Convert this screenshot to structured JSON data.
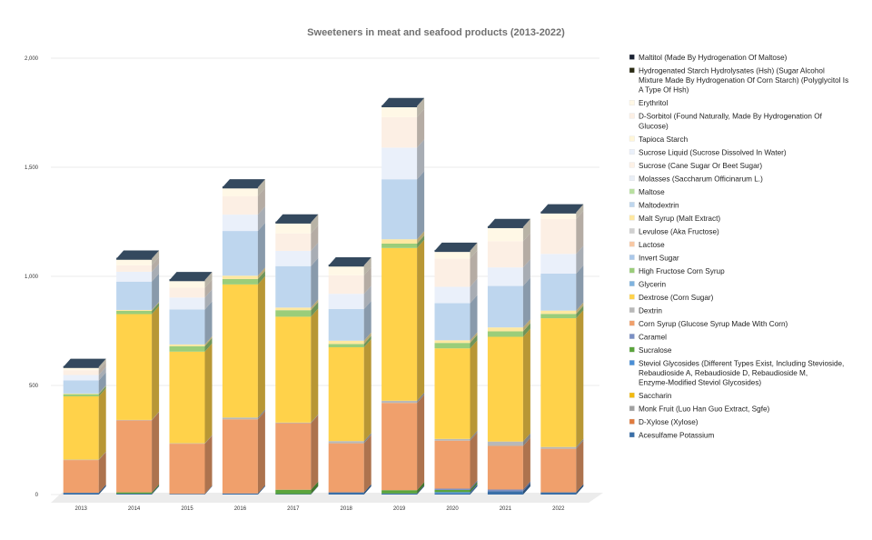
{
  "chart_data": {
    "type": "bar",
    "stacked": true,
    "title": "Sweeteners in meat and seafood products (2013-2022)",
    "xlabel": "",
    "ylabel": "",
    "ylim": [
      0,
      2000
    ],
    "yticks": [
      0,
      500,
      1000,
      1500,
      2000
    ],
    "ytick_labels": [
      "0",
      "500",
      "1,000",
      "1,500",
      "2,000"
    ],
    "categories": [
      "2013",
      "2014",
      "2015",
      "2016",
      "2017",
      "2018",
      "2019",
      "2020",
      "2021",
      "2022"
    ],
    "legend_position": "right",
    "series": [
      {
        "name": "Acesulfame Potassium",
        "color": "#3a6fa8",
        "values": [
          8,
          4,
          3,
          5,
          2,
          10,
          5,
          5,
          15,
          10
        ]
      },
      {
        "name": "D-Xylose (Xylose)",
        "color": "#e07b3e",
        "values": [
          0,
          0,
          0,
          0,
          0,
          0,
          0,
          0,
          0,
          0
        ]
      },
      {
        "name": "Monk Fruit (Luo Han Guo Extract, Sgfe)",
        "color": "#a0a0a0",
        "values": [
          0,
          0,
          0,
          0,
          0,
          0,
          0,
          0,
          0,
          0
        ]
      },
      {
        "name": "Saccharin",
        "color": "#f2b90f",
        "values": [
          0,
          0,
          0,
          0,
          0,
          0,
          0,
          0,
          0,
          0
        ]
      },
      {
        "name": "Steviol Glycosides (Different Types Exist, Including Stevioside, Rebaudioside A, Rebaudioside D, Rebaudioside M, Enzyme-Modified Steviol Glycosides)",
        "color": "#4a8fd6",
        "values": [
          0,
          0,
          0,
          0,
          0,
          0,
          0,
          6,
          0,
          0
        ]
      },
      {
        "name": "Sucralose",
        "color": "#5aa43c",
        "values": [
          0,
          6,
          0,
          0,
          20,
          0,
          15,
          10,
          0,
          0
        ]
      },
      {
        "name": "Caramel",
        "color": "#7a8fc4",
        "values": [
          0,
          0,
          0,
          0,
          0,
          0,
          0,
          6,
          8,
          0
        ]
      },
      {
        "name": "Corn Syrup (Glucose Syrup Made With Corn)",
        "color": "#f0a06c",
        "values": [
          150,
          330,
          230,
          340,
          305,
          225,
          400,
          220,
          200,
          200
        ]
      },
      {
        "name": "Dextrin",
        "color": "#b8b8b8",
        "values": [
          2,
          2,
          2,
          8,
          3,
          10,
          10,
          8,
          20,
          8
        ]
      },
      {
        "name": "Dextrose (Corn Sugar)",
        "color": "#ffd24a",
        "values": [
          290,
          485,
          420,
          610,
          485,
          430,
          700,
          415,
          480,
          590
        ]
      },
      {
        "name": "Glycerin",
        "color": "#7fb3df",
        "values": [
          0,
          0,
          0,
          0,
          0,
          0,
          0,
          0,
          0,
          0
        ]
      },
      {
        "name": "High Fructose Corn Syrup",
        "color": "#9acd7a",
        "values": [
          10,
          15,
          25,
          25,
          30,
          15,
          20,
          25,
          25,
          20
        ]
      },
      {
        "name": "Invert Sugar",
        "color": "#aac8ea",
        "values": [
          0,
          0,
          0,
          0,
          0,
          0,
          0,
          0,
          0,
          0
        ]
      },
      {
        "name": "Lactose",
        "color": "#f8c8a4",
        "values": [
          0,
          0,
          0,
          0,
          0,
          0,
          0,
          0,
          0,
          0
        ]
      },
      {
        "name": "Levulose (Aka Fructose)",
        "color": "#d0d0d0",
        "values": [
          0,
          0,
          0,
          0,
          0,
          0,
          0,
          0,
          0,
          0
        ]
      },
      {
        "name": "Malt Syrup (Malt Extract)",
        "color": "#ffe8a0",
        "values": [
          3,
          4,
          8,
          15,
          12,
          15,
          20,
          12,
          18,
          15
        ]
      },
      {
        "name": "Maltodextrin",
        "color": "#bed6ee",
        "values": [
          60,
          130,
          160,
          205,
          190,
          145,
          275,
          170,
          190,
          170
        ]
      },
      {
        "name": "Maltose",
        "color": "#b8e0a0",
        "values": [
          0,
          0,
          0,
          0,
          0,
          0,
          0,
          0,
          0,
          0
        ]
      },
      {
        "name": "Molasses (Saccharum Officinarum L.)",
        "color": "#e8eef6",
        "values": [
          0,
          0,
          0,
          0,
          0,
          0,
          0,
          0,
          0,
          0
        ]
      },
      {
        "name": "Sucrose (Cane Sugar Or Beet Sugar)",
        "color": "#fdf1e6",
        "values": [
          0,
          0,
          0,
          0,
          0,
          0,
          0,
          0,
          0,
          0
        ]
      },
      {
        "name": "Sucrose Liquid (Sucrose Dissolved In Water)",
        "color": "#eaf0fa",
        "values": [
          25,
          45,
          55,
          75,
          70,
          70,
          145,
          75,
          85,
          90
        ]
      },
      {
        "name": "Tapioca Starch",
        "color": "#fff6d8",
        "values": [
          0,
          0,
          0,
          0,
          0,
          0,
          0,
          0,
          0,
          0
        ]
      },
      {
        "name": "D-Sorbitol (Found Naturally, Made By Hydrogenation Of Glucose)",
        "color": "#fcefe4",
        "values": [
          22,
          30,
          45,
          85,
          80,
          85,
          140,
          130,
          120,
          160
        ]
      },
      {
        "name": "Erythritol",
        "color": "#fff8e6",
        "values": [
          15,
          30,
          35,
          40,
          50,
          45,
          50,
          35,
          65,
          30
        ]
      },
      {
        "name": "Hydrogenated Starch Hydrolysates (Hsh) (Sugar Alcohol Mixture Made By Hydrogenation Of Corn Starch) (Polyglycitol Is A Type Of Hsh)",
        "color": "#2b2b14",
        "values": [
          0,
          0,
          0,
          0,
          0,
          0,
          0,
          0,
          0,
          0
        ]
      },
      {
        "name": "Maltitol (Made By Hydrogenation Of Maltose)",
        "color": "#1a2233",
        "values": [
          0,
          0,
          0,
          0,
          0,
          0,
          0,
          0,
          0,
          0
        ]
      }
    ]
  }
}
